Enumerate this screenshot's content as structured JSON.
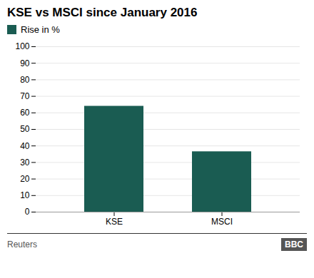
{
  "chart_data": {
    "type": "bar",
    "title": "KSE vs MSCI since January 2016",
    "categories": [
      "KSE",
      "MSCI"
    ],
    "series": [
      {
        "name": "Rise in %",
        "color": "#1a5c52",
        "values": [
          64,
          36.5
        ]
      }
    ],
    "ylim": [
      0,
      100
    ],
    "yticks": [
      0,
      10,
      20,
      30,
      40,
      50,
      60,
      70,
      80,
      90,
      100
    ],
    "grid": true,
    "legend": "top",
    "annotations": [
      "Reuters",
      "BBC"
    ]
  }
}
